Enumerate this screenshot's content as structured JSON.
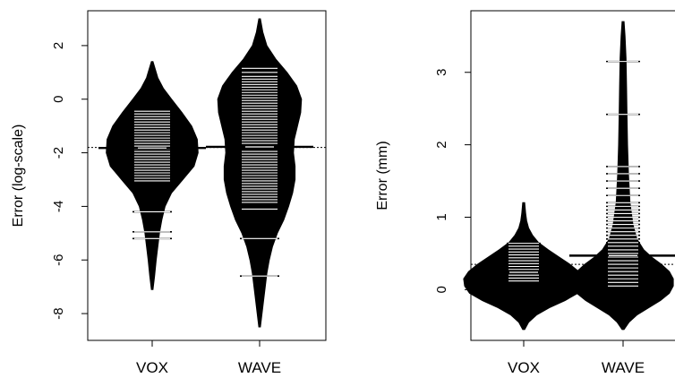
{
  "chart_data": [
    {
      "type": "beanplot",
      "ylabel": "Error (log-scale)",
      "categories": [
        "VOX",
        "WAVE"
      ],
      "ylim": [
        -9,
        3.3
      ],
      "yticks": [
        -8,
        -6,
        -4,
        -2,
        0,
        2
      ],
      "reference_line": -1.8,
      "beans": [
        {
          "name": "VOX",
          "range": [
            -7.1,
            1.4
          ],
          "mean": -1.82,
          "density": [
            [
              -7.1,
              0.01
            ],
            [
              -6.6,
              0.03
            ],
            [
              -6.0,
              0.05
            ],
            [
              -5.5,
              0.07
            ],
            [
              -5.0,
              0.09
            ],
            [
              -4.5,
              0.12
            ],
            [
              -4.0,
              0.16
            ],
            [
              -3.5,
              0.24
            ],
            [
              -3.0,
              0.38
            ],
            [
              -2.5,
              0.52
            ],
            [
              -2.0,
              0.57
            ],
            [
              -1.5,
              0.56
            ],
            [
              -1.0,
              0.49
            ],
            [
              -0.5,
              0.37
            ],
            [
              0.0,
              0.24
            ],
            [
              0.4,
              0.14
            ],
            [
              0.8,
              0.07
            ],
            [
              1.1,
              0.04
            ],
            [
              1.4,
              0.01
            ]
          ],
          "observations": [
            -0.45,
            -0.55,
            -0.65,
            -0.75,
            -0.85,
            -0.95,
            -1.05,
            -1.15,
            -1.25,
            -1.35,
            -1.45,
            -1.55,
            -1.65,
            -1.75,
            -1.85,
            -1.95,
            -2.05,
            -2.15,
            -2.25,
            -2.35,
            -2.45,
            -2.55,
            -2.65,
            -2.75,
            -2.85,
            -2.95,
            -3.05,
            -4.2,
            -4.95,
            -5.2
          ]
        },
        {
          "name": "WAVE",
          "range": [
            -8.5,
            3.0
          ],
          "mean": -1.78,
          "density": [
            [
              -8.5,
              0.01
            ],
            [
              -8.0,
              0.03
            ],
            [
              -7.5,
              0.05
            ],
            [
              -7.0,
              0.07
            ],
            [
              -6.5,
              0.09
            ],
            [
              -6.0,
              0.12
            ],
            [
              -5.5,
              0.16
            ],
            [
              -5.0,
              0.22
            ],
            [
              -4.5,
              0.3
            ],
            [
              -4.0,
              0.36
            ],
            [
              -3.5,
              0.41
            ],
            [
              -3.0,
              0.44
            ],
            [
              -2.5,
              0.44
            ],
            [
              -2.0,
              0.42
            ],
            [
              -1.5,
              0.43
            ],
            [
              -1.0,
              0.47
            ],
            [
              -0.5,
              0.51
            ],
            [
              0.0,
              0.52
            ],
            [
              0.5,
              0.46
            ],
            [
              1.0,
              0.34
            ],
            [
              1.5,
              0.2
            ],
            [
              2.0,
              0.09
            ],
            [
              2.5,
              0.04
            ],
            [
              3.0,
              0.01
            ]
          ],
          "observations": [
            1.15,
            1.0,
            0.85,
            0.75,
            0.65,
            0.55,
            0.45,
            0.35,
            0.25,
            0.15,
            0.05,
            -0.05,
            -0.15,
            -0.25,
            -0.35,
            -0.45,
            -0.55,
            -0.65,
            -0.75,
            -0.85,
            -0.95,
            -1.05,
            -1.15,
            -1.25,
            -1.35,
            -1.45,
            -1.55,
            -1.65,
            -1.95,
            -2.05,
            -2.15,
            -2.25,
            -2.35,
            -2.45,
            -2.55,
            -2.65,
            -2.75,
            -2.85,
            -2.95,
            -3.05,
            -3.15,
            -3.25,
            -3.35,
            -3.45,
            -3.55,
            -3.65,
            -3.75,
            -3.85,
            -4.1,
            -5.2,
            -6.6
          ]
        }
      ]
    },
    {
      "type": "beanplot",
      "ylabel": "Error (mm)",
      "categories": [
        "VOX",
        "WAVE"
      ],
      "ylim": [
        -0.7,
        3.85
      ],
      "yticks": [
        0,
        1,
        2,
        3
      ],
      "reference_line": 0.35,
      "beans": [
        {
          "name": "VOX",
          "range": [
            -0.55,
            1.2
          ],
          "mean": 0.24,
          "density": [
            [
              -0.55,
              0.01
            ],
            [
              -0.45,
              0.05
            ],
            [
              -0.35,
              0.13
            ],
            [
              -0.25,
              0.26
            ],
            [
              -0.15,
              0.42
            ],
            [
              -0.05,
              0.55
            ],
            [
              0.05,
              0.6
            ],
            [
              0.15,
              0.61
            ],
            [
              0.25,
              0.56
            ],
            [
              0.35,
              0.47
            ],
            [
              0.45,
              0.36
            ],
            [
              0.55,
              0.25
            ],
            [
              0.65,
              0.15
            ],
            [
              0.75,
              0.09
            ],
            [
              0.85,
              0.05
            ],
            [
              0.95,
              0.03
            ],
            [
              1.05,
              0.02
            ],
            [
              1.2,
              0.01
            ]
          ],
          "observations": [
            0.64,
            0.6,
            0.56,
            0.52,
            0.48,
            0.44,
            0.4,
            0.36,
            0.32,
            0.28,
            0.24,
            0.2,
            0.16,
            0.12
          ]
        },
        {
          "name": "WAVE",
          "range": [
            -0.55,
            3.7
          ],
          "mean": 0.47,
          "density": [
            [
              -0.55,
              0.01
            ],
            [
              -0.45,
              0.06
            ],
            [
              -0.35,
              0.14
            ],
            [
              -0.25,
              0.26
            ],
            [
              -0.15,
              0.38
            ],
            [
              -0.05,
              0.47
            ],
            [
              0.05,
              0.51
            ],
            [
              0.15,
              0.51
            ],
            [
              0.25,
              0.47
            ],
            [
              0.35,
              0.39
            ],
            [
              0.45,
              0.29
            ],
            [
              0.55,
              0.21
            ],
            [
              0.7,
              0.14
            ],
            [
              0.9,
              0.1
            ],
            [
              1.2,
              0.07
            ],
            [
              1.6,
              0.055
            ],
            [
              2.0,
              0.045
            ],
            [
              2.4,
              0.04
            ],
            [
              2.8,
              0.035
            ],
            [
              3.2,
              0.03
            ],
            [
              3.5,
              0.02
            ],
            [
              3.7,
              0.01
            ]
          ],
          "observations": [
            3.15,
            2.42,
            1.7,
            1.6,
            1.5,
            1.4,
            1.3,
            1.2,
            1.15,
            1.1,
            1.05,
            1.0,
            0.95,
            0.9,
            0.85,
            0.8,
            0.75,
            0.7,
            0.65,
            0.6,
            0.55,
            0.5,
            0.45,
            0.4,
            0.35,
            0.3,
            0.25,
            0.2,
            0.15,
            0.1,
            0.05
          ]
        }
      ]
    }
  ]
}
